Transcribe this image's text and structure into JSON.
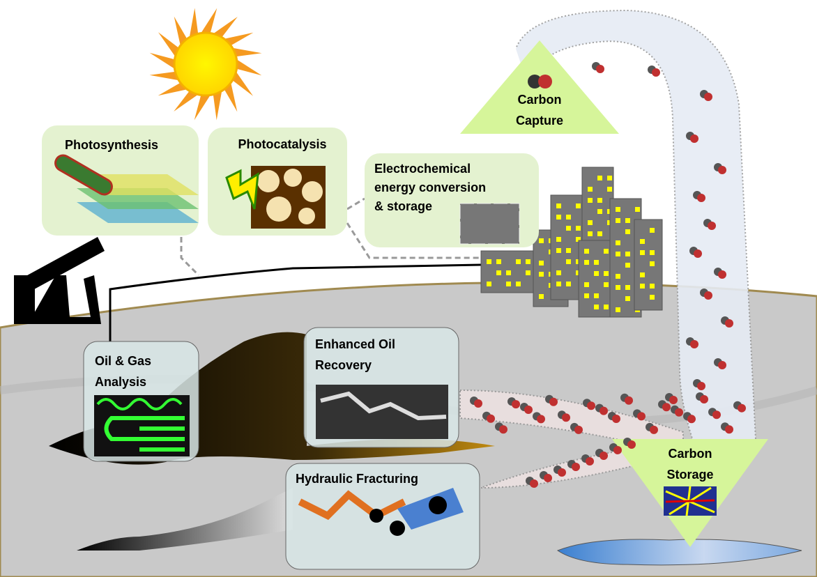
{
  "nodes": [
    {
      "lines": [
        "Photosynthesis"
      ]
    },
    {
      "lines": [
        "Photocatalysis"
      ]
    },
    {
      "lines": [
        "Electrochemical",
        "energy conversion",
        "& storage"
      ]
    },
    {
      "lines": [
        "Carbon",
        "Capture"
      ]
    },
    {
      "lines": [
        "Oil & Gas",
        "Analysis"
      ]
    },
    {
      "lines": [
        "Enhanced Oil",
        "Recovery"
      ]
    },
    {
      "lines": [
        "Hydraulic Fracturing"
      ]
    },
    {
      "lines": [
        "Carbon",
        "Storage"
      ]
    }
  ]
}
